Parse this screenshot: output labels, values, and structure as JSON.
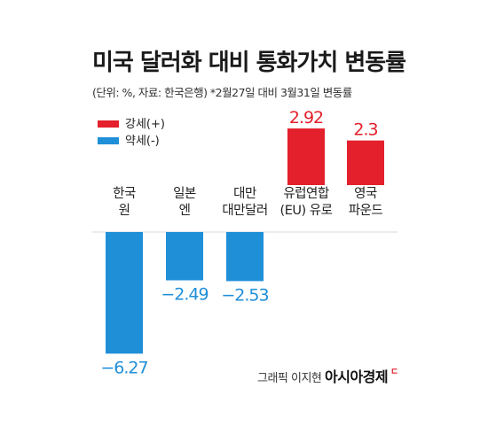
{
  "title": "미국 달러화 대비 통화가치 변동률",
  "subtitle": "(단위: %, 자료: 한국은행) *2월27일 대비 3월31일 변동률",
  "credit": "그래픽 이지현",
  "brand": "아시아경제",
  "brand_mark": "ㄷ",
  "colors": {
    "positive": "#e3202c",
    "negative": "#1f8fd8",
    "text": "#222222"
  },
  "chart_data": {
    "type": "bar",
    "legend": [
      {
        "label": "강세(+)",
        "color": "#e3202c"
      },
      {
        "label": "약세(-)",
        "color": "#1f8fd8"
      }
    ],
    "categories": [
      [
        "한국",
        "원"
      ],
      [
        "일본",
        "엔"
      ],
      [
        "대만",
        "대만달러"
      ],
      [
        "유럽연합",
        "(EU) 유로"
      ],
      [
        "영국",
        "파운드"
      ]
    ],
    "values": [
      -6.27,
      -2.49,
      -2.53,
      2.92,
      2.3
    ],
    "value_labels": [
      "−6.27",
      "−2.49",
      "−2.53",
      "2.92",
      "2.3"
    ],
    "unit": "%",
    "grid": false,
    "legend_position": "top-left"
  }
}
